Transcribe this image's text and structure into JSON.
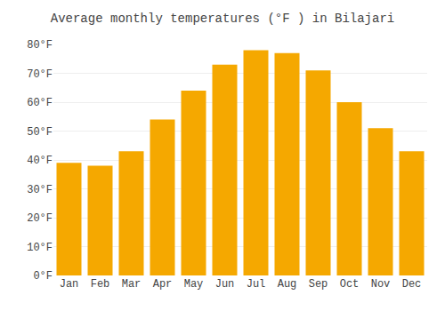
{
  "chart_data": {
    "type": "bar",
    "title": "Average monthly temperatures (°F ) in Bilajari",
    "categories": [
      "Jan",
      "Feb",
      "Mar",
      "Apr",
      "May",
      "Jun",
      "Jul",
      "Aug",
      "Sep",
      "Oct",
      "Nov",
      "Dec"
    ],
    "values": [
      39,
      38,
      43,
      54,
      64,
      73,
      78,
      77,
      71,
      60,
      51,
      43
    ],
    "color": "#F5A800",
    "ylim": [
      0,
      80
    ],
    "yticks": [
      {
        "value": 0,
        "label": "0°F"
      },
      {
        "value": 10,
        "label": "10°F"
      },
      {
        "value": 20,
        "label": "20°F"
      },
      {
        "value": 30,
        "label": "30°F"
      },
      {
        "value": 40,
        "label": "40°F"
      },
      {
        "value": 50,
        "label": "50°F"
      },
      {
        "value": 60,
        "label": "60°F"
      },
      {
        "value": 70,
        "label": "70°F"
      },
      {
        "value": 80,
        "label": "80°F"
      }
    ],
    "grid": true
  }
}
